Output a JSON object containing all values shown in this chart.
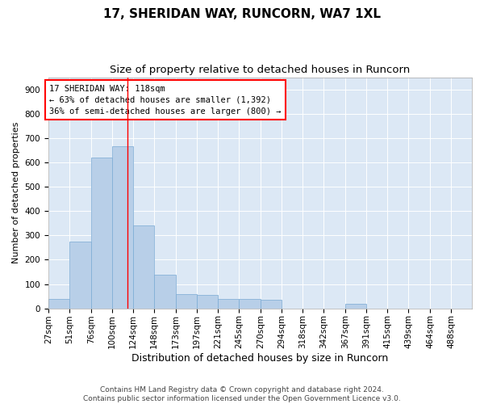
{
  "title1": "17, SHERIDAN WAY, RUNCORN, WA7 1XL",
  "title2": "Size of property relative to detached houses in Runcorn",
  "xlabel": "Distribution of detached houses by size in Runcorn",
  "ylabel": "Number of detached properties",
  "bar_color": "#b8cfe8",
  "bar_edge_color": "#7aaad4",
  "background_color": "#dce8f5",
  "vline_x": 118,
  "annotation_text": "17 SHERIDAN WAY: 118sqm\n← 63% of detached houses are smaller (1,392)\n36% of semi-detached houses are larger (800) →",
  "bin_edges": [
    27,
    51,
    76,
    100,
    124,
    148,
    173,
    197,
    221,
    245,
    270,
    294,
    318,
    342,
    367,
    391,
    415,
    439,
    464,
    488,
    512
  ],
  "bar_heights": [
    40,
    275,
    620,
    665,
    340,
    140,
    60,
    55,
    40,
    38,
    35,
    0,
    0,
    0,
    20,
    0,
    0,
    0,
    0,
    0
  ],
  "ylim": [
    0,
    950
  ],
  "yticks": [
    0,
    100,
    200,
    300,
    400,
    500,
    600,
    700,
    800,
    900
  ],
  "footnote": "Contains HM Land Registry data © Crown copyright and database right 2024.\nContains public sector information licensed under the Open Government Licence v3.0.",
  "title1_fontsize": 11,
  "title2_fontsize": 9.5,
  "xlabel_fontsize": 9,
  "ylabel_fontsize": 8,
  "tick_fontsize": 7.5,
  "annot_fontsize": 7.5,
  "footnote_fontsize": 6.5
}
